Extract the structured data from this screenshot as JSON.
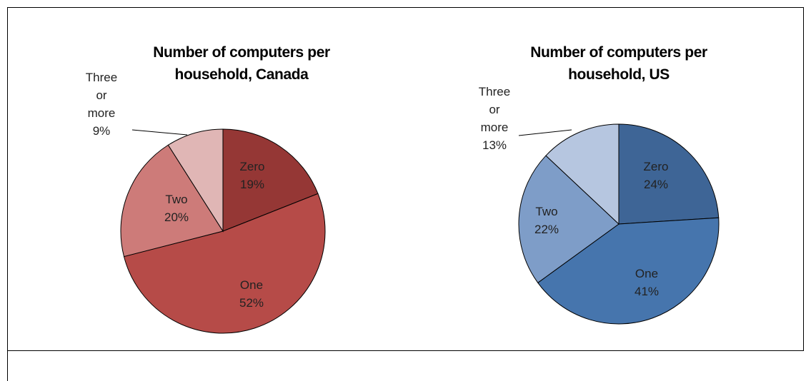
{
  "chart_data": [
    {
      "type": "pie",
      "title": "Number of computers per household, Canada",
      "categories": [
        "Zero",
        "One",
        "Two",
        "Three or more"
      ],
      "values": [
        19,
        52,
        20,
        9
      ],
      "value_labels": [
        "19%",
        "52%",
        "20%",
        "9%"
      ],
      "colors": [
        "#953735",
        "#b64b48",
        "#cd7b79",
        "#e0b6b5"
      ]
    },
    {
      "type": "pie",
      "title": "Number of computers per household, US",
      "categories": [
        "Zero",
        "One",
        "Two",
        "Three or more"
      ],
      "values": [
        24,
        41,
        22,
        13
      ],
      "value_labels": [
        "24%",
        "41%",
        "22%",
        "13%"
      ],
      "colors": [
        "#3e6596",
        "#4675ad",
        "#7e9dc8",
        "#b6c6e0"
      ]
    }
  ]
}
